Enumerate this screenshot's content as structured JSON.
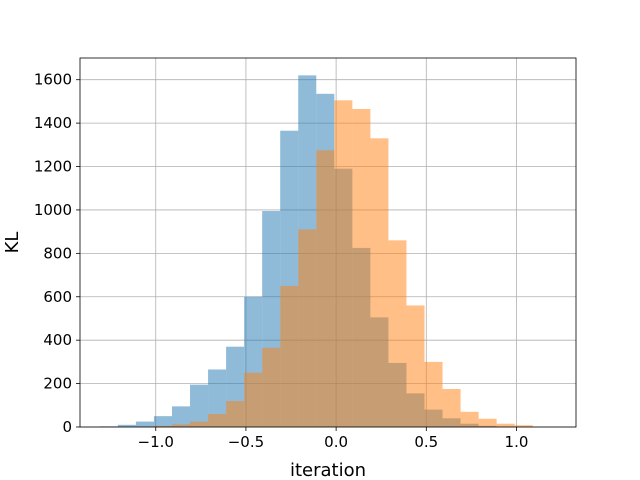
{
  "chart_data": {
    "type": "bar",
    "title": "",
    "xlabel": "iteration",
    "ylabel": "KL",
    "xlim": [
      -1.42,
      1.33
    ],
    "ylim": [
      0,
      1700
    ],
    "grid": true,
    "x_ticks": [
      -1.0,
      -0.5,
      0.0,
      0.5,
      1.0
    ],
    "x_tick_labels": [
      "−1.0",
      "−0.5",
      "0.0",
      "0.5",
      "1.0"
    ],
    "y_ticks": [
      0,
      200,
      400,
      600,
      800,
      1000,
      1200,
      1400,
      1600
    ],
    "y_tick_labels": [
      "0",
      "200",
      "400",
      "600",
      "800",
      "1000",
      "1200",
      "1400",
      "1600"
    ],
    "series": [
      {
        "color": "#1f77b4",
        "opacity": 0.5,
        "bin_edges": [
          -1.31,
          -1.21,
          -1.11,
          -1.01,
          -0.91,
          -0.81,
          -0.71,
          -0.61,
          -0.51,
          -0.41,
          -0.31,
          -0.21,
          -0.11,
          -0.01,
          0.09,
          0.19,
          0.29,
          0.39,
          0.49,
          0.59,
          0.69,
          0.79,
          0.89,
          0.99
        ],
        "counts": [
          3,
          10,
          25,
          50,
          95,
          195,
          265,
          370,
          600,
          995,
          1365,
          1620,
          1535,
          1190,
          825,
          505,
          295,
          155,
          80,
          40,
          15,
          5,
          2
        ]
      },
      {
        "color": "#ff7f0e",
        "opacity": 0.5,
        "bin_edges": [
          -1.11,
          -1.01,
          -0.91,
          -0.81,
          -0.71,
          -0.61,
          -0.51,
          -0.41,
          -0.31,
          -0.21,
          -0.11,
          -0.01,
          0.09,
          0.19,
          0.29,
          0.39,
          0.49,
          0.59,
          0.69,
          0.79,
          0.89,
          0.99,
          1.09
        ],
        "counts": [
          2,
          5,
          12,
          25,
          60,
          120,
          250,
          365,
          650,
          910,
          1275,
          1505,
          1465,
          1330,
          860,
          560,
          300,
          175,
          70,
          38,
          15,
          8
        ]
      }
    ]
  }
}
